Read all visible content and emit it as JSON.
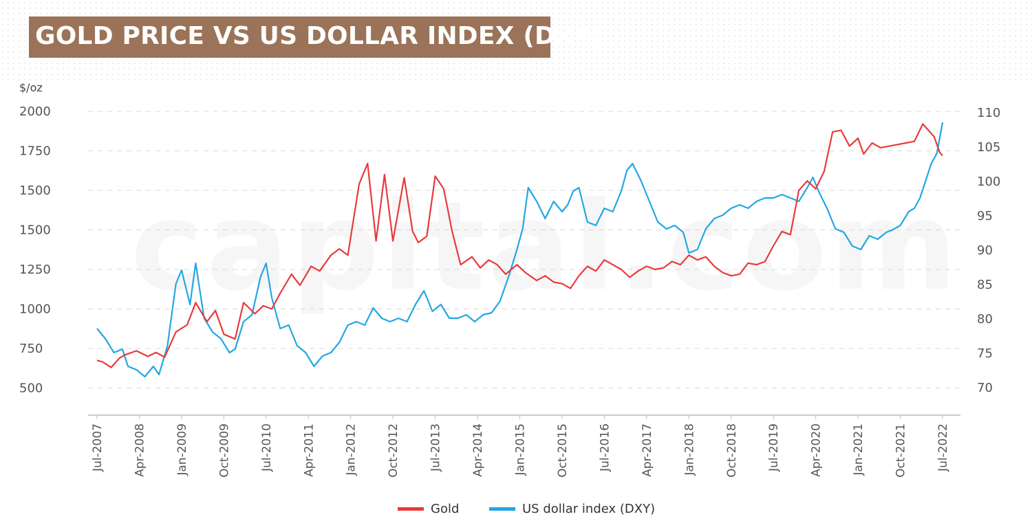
{
  "title": "GOLD PRICE VS US DOLLAR INDEX (DXY)",
  "watermark": "capital.com",
  "colors": {
    "gold": "#e8393b",
    "dxy": "#22a7e2",
    "title_bg": "#9a7358",
    "grid": "#d8d8d8",
    "axis": "#bbbbbb"
  },
  "chart_data": {
    "type": "line",
    "y_left_unit": "$/oz",
    "y_left_ticks": [
      "2000",
      "1750",
      "1500",
      "1500",
      "1250",
      "1000",
      "750",
      "500"
    ],
    "y_right_ticks": [
      "110",
      "105",
      "100",
      "95",
      "90",
      "85",
      "80",
      "75",
      "70"
    ],
    "y_right_range": [
      70,
      110
    ],
    "x_ticks": [
      "Jul-2007",
      "Apr-2008",
      "Jan-2009",
      "Oct-2009",
      "Jul-2010",
      "Apr-2011",
      "Jan-2012",
      "Oct-2012",
      "Jul-2013",
      "Apr-2014",
      "Jan-2015",
      "Oct-2015",
      "Jul-2016",
      "Apr-2017",
      "Jan-2018",
      "Oct-2018",
      "Jul-2019",
      "Apr-2020",
      "Jan-2021",
      "Oct-2021",
      "Jul-2022"
    ],
    "x_range": [
      2007.5,
      2022.5
    ],
    "grid": "horizontal dashed",
    "legend_position": "bottom",
    "series": [
      {
        "name": "Gold",
        "axis": "left",
        "color": "#e8393b",
        "points": [
          [
            2007.5,
            675
          ],
          [
            2007.6,
            665
          ],
          [
            2007.75,
            630
          ],
          [
            2007.9,
            690
          ],
          [
            2008.0,
            710
          ],
          [
            2008.2,
            735
          ],
          [
            2008.4,
            700
          ],
          [
            2008.55,
            725
          ],
          [
            2008.7,
            695
          ],
          [
            2008.9,
            855
          ],
          [
            2009.1,
            900
          ],
          [
            2009.25,
            1040
          ],
          [
            2009.45,
            920
          ],
          [
            2009.6,
            990
          ],
          [
            2009.75,
            840
          ],
          [
            2009.95,
            810
          ],
          [
            2010.1,
            1040
          ],
          [
            2010.3,
            970
          ],
          [
            2010.45,
            1020
          ],
          [
            2010.6,
            1000
          ],
          [
            2010.75,
            1100
          ],
          [
            2010.95,
            1220
          ],
          [
            2011.1,
            1150
          ],
          [
            2011.3,
            1270
          ],
          [
            2011.45,
            1240
          ],
          [
            2011.65,
            1340
          ],
          [
            2011.8,
            1380
          ],
          [
            2011.95,
            1340
          ],
          [
            2012.15,
            1540
          ],
          [
            2012.3,
            1670
          ],
          [
            2012.45,
            1430
          ],
          [
            2012.6,
            1600
          ],
          [
            2012.75,
            1430
          ],
          [
            2012.95,
            1580
          ],
          [
            2013.1,
            1490
          ],
          [
            2013.2,
            1420
          ],
          [
            2013.35,
            1460
          ],
          [
            2013.5,
            1590
          ],
          [
            2013.65,
            1510
          ],
          [
            2013.8,
            1490
          ],
          [
            2013.95,
            1280
          ],
          [
            2014.15,
            1330
          ],
          [
            2014.3,
            1260
          ],
          [
            2014.45,
            1310
          ],
          [
            2014.6,
            1280
          ],
          [
            2014.75,
            1220
          ],
          [
            2014.95,
            1280
          ],
          [
            2015.1,
            1230
          ],
          [
            2015.3,
            1180
          ],
          [
            2015.45,
            1210
          ],
          [
            2015.6,
            1170
          ],
          [
            2015.75,
            1160
          ],
          [
            2015.9,
            1130
          ],
          [
            2016.05,
            1210
          ],
          [
            2016.2,
            1270
          ],
          [
            2016.35,
            1240
          ],
          [
            2016.5,
            1310
          ],
          [
            2016.65,
            1280
          ],
          [
            2016.8,
            1250
          ],
          [
            2016.95,
            1200
          ],
          [
            2017.1,
            1240
          ],
          [
            2017.25,
            1270
          ],
          [
            2017.4,
            1250
          ],
          [
            2017.55,
            1260
          ],
          [
            2017.7,
            1300
          ],
          [
            2017.85,
            1280
          ],
          [
            2018.0,
            1340
          ],
          [
            2018.15,
            1310
          ],
          [
            2018.3,
            1330
          ],
          [
            2018.45,
            1270
          ],
          [
            2018.6,
            1230
          ],
          [
            2018.75,
            1210
          ],
          [
            2018.9,
            1220
          ],
          [
            2019.05,
            1290
          ],
          [
            2019.2,
            1280
          ],
          [
            2019.35,
            1300
          ],
          [
            2019.5,
            1400
          ],
          [
            2019.65,
            1490
          ],
          [
            2019.8,
            1470
          ],
          [
            2019.95,
            1500
          ],
          [
            2020.1,
            1560
          ],
          [
            2020.25,
            1510
          ],
          [
            2020.4,
            1620
          ],
          [
            2020.55,
            1870
          ],
          [
            2020.7,
            1880
          ],
          [
            2020.85,
            1780
          ],
          [
            2021.0,
            1830
          ],
          [
            2021.1,
            1730
          ],
          [
            2021.25,
            1800
          ],
          [
            2021.4,
            1770
          ],
          [
            2021.55,
            1780
          ],
          [
            2021.7,
            1790
          ],
          [
            2021.85,
            1800
          ],
          [
            2022.0,
            1810
          ],
          [
            2022.15,
            1920
          ],
          [
            2022.25,
            1880
          ],
          [
            2022.35,
            1840
          ],
          [
            2022.45,
            1740
          ],
          [
            2022.5,
            1720
          ]
        ]
      },
      {
        "name": "US dollar index (DXY)",
        "axis": "right",
        "color": "#22a7e2",
        "points": [
          [
            2007.5,
            78.5
          ],
          [
            2007.65,
            77
          ],
          [
            2007.8,
            75
          ],
          [
            2007.95,
            75.5
          ],
          [
            2008.05,
            73
          ],
          [
            2008.2,
            72.5
          ],
          [
            2008.35,
            71.5
          ],
          [
            2008.5,
            73
          ],
          [
            2008.6,
            71.8
          ],
          [
            2008.75,
            76
          ],
          [
            2008.9,
            85
          ],
          [
            2009.0,
            87
          ],
          [
            2009.15,
            82
          ],
          [
            2009.25,
            88
          ],
          [
            2009.4,
            80
          ],
          [
            2009.55,
            78
          ],
          [
            2009.7,
            77
          ],
          [
            2009.85,
            75
          ],
          [
            2009.95,
            75.5
          ],
          [
            2010.1,
            79.5
          ],
          [
            2010.25,
            80.5
          ],
          [
            2010.4,
            86
          ],
          [
            2010.5,
            88
          ],
          [
            2010.6,
            83
          ],
          [
            2010.75,
            78.5
          ],
          [
            2010.9,
            79
          ],
          [
            2011.05,
            76
          ],
          [
            2011.2,
            75
          ],
          [
            2011.35,
            73
          ],
          [
            2011.5,
            74.5
          ],
          [
            2011.65,
            75
          ],
          [
            2011.8,
            76.5
          ],
          [
            2011.95,
            79
          ],
          [
            2012.1,
            79.5
          ],
          [
            2012.25,
            79
          ],
          [
            2012.4,
            81.5
          ],
          [
            2012.55,
            80
          ],
          [
            2012.7,
            79.5
          ],
          [
            2012.85,
            80
          ],
          [
            2013.0,
            79.5
          ],
          [
            2013.15,
            82
          ],
          [
            2013.3,
            84
          ],
          [
            2013.45,
            81
          ],
          [
            2013.6,
            82
          ],
          [
            2013.75,
            80
          ],
          [
            2013.9,
            80
          ],
          [
            2014.05,
            80.5
          ],
          [
            2014.2,
            79.5
          ],
          [
            2014.35,
            80.5
          ],
          [
            2014.5,
            80.8
          ],
          [
            2014.65,
            82.5
          ],
          [
            2014.8,
            86
          ],
          [
            2014.95,
            90
          ],
          [
            2015.05,
            93
          ],
          [
            2015.15,
            99
          ],
          [
            2015.3,
            97
          ],
          [
            2015.45,
            94.5
          ],
          [
            2015.6,
            97
          ],
          [
            2015.75,
            95.5
          ],
          [
            2015.85,
            96.5
          ],
          [
            2015.95,
            98.5
          ],
          [
            2016.05,
            99
          ],
          [
            2016.2,
            94
          ],
          [
            2016.35,
            93.5
          ],
          [
            2016.5,
            96
          ],
          [
            2016.65,
            95.5
          ],
          [
            2016.8,
            98.5
          ],
          [
            2016.9,
            101.5
          ],
          [
            2017.0,
            102.5
          ],
          [
            2017.15,
            100
          ],
          [
            2017.3,
            97
          ],
          [
            2017.45,
            94
          ],
          [
            2017.6,
            93
          ],
          [
            2017.75,
            93.5
          ],
          [
            2017.9,
            92.5
          ],
          [
            2018.0,
            89.5
          ],
          [
            2018.15,
            90
          ],
          [
            2018.3,
            93
          ],
          [
            2018.45,
            94.5
          ],
          [
            2018.6,
            95
          ],
          [
            2018.75,
            96
          ],
          [
            2018.9,
            96.5
          ],
          [
            2019.05,
            96
          ],
          [
            2019.2,
            97
          ],
          [
            2019.35,
            97.5
          ],
          [
            2019.5,
            97.5
          ],
          [
            2019.65,
            98
          ],
          [
            2019.8,
            97.5
          ],
          [
            2019.95,
            97
          ],
          [
            2020.1,
            99
          ],
          [
            2020.2,
            100.5
          ],
          [
            2020.3,
            98.5
          ],
          [
            2020.45,
            96
          ],
          [
            2020.6,
            93
          ],
          [
            2020.75,
            92.5
          ],
          [
            2020.9,
            90.5
          ],
          [
            2021.05,
            90
          ],
          [
            2021.2,
            92
          ],
          [
            2021.35,
            91.5
          ],
          [
            2021.5,
            92.5
          ],
          [
            2021.6,
            92.8
          ],
          [
            2021.75,
            93.5
          ],
          [
            2021.9,
            95.5
          ],
          [
            2022.0,
            96
          ],
          [
            2022.1,
            97.5
          ],
          [
            2022.2,
            100
          ],
          [
            2022.3,
            102.5
          ],
          [
            2022.4,
            104
          ],
          [
            2022.5,
            108.5
          ]
        ]
      }
    ]
  }
}
